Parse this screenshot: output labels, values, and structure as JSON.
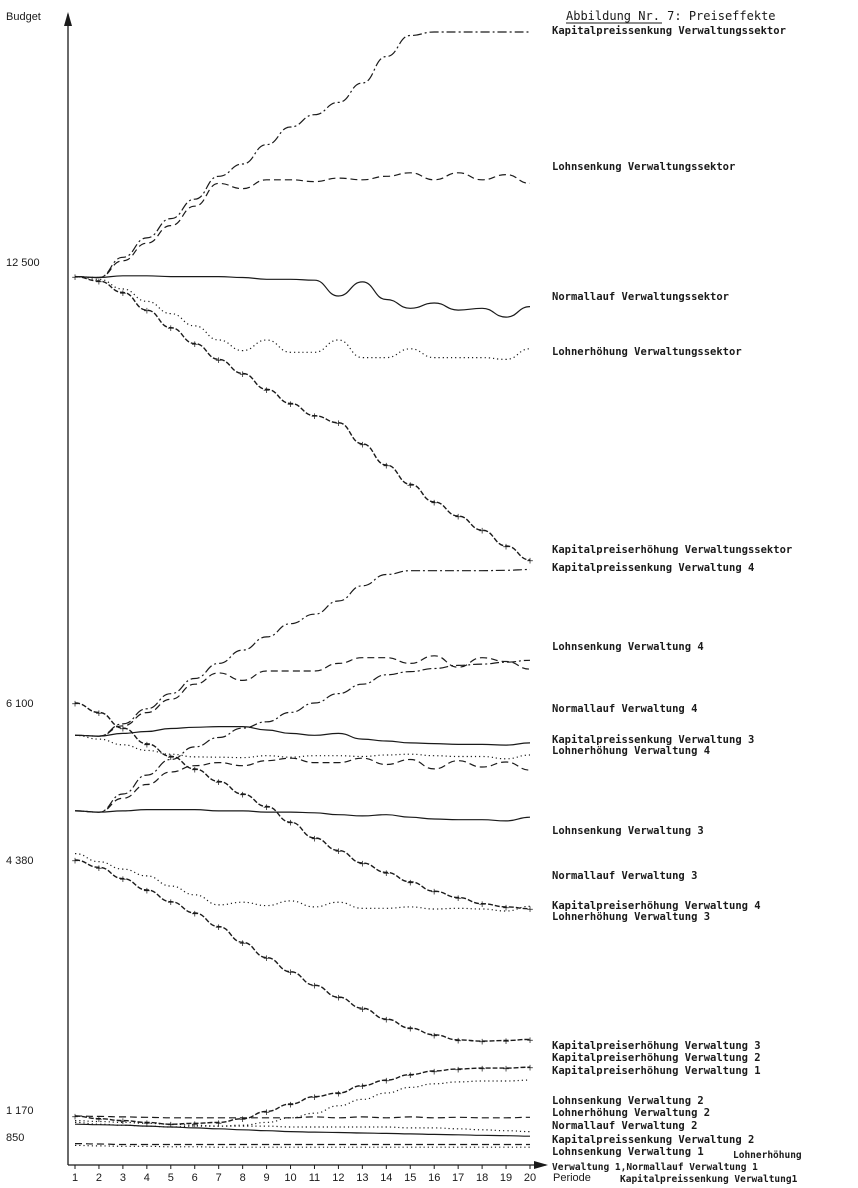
{
  "chart_data": {
    "type": "line",
    "title": "Abbildung Nr. 7: Preiseffekte",
    "ylabel": "Budget",
    "xlabel": "Periode",
    "x": [
      1,
      2,
      3,
      4,
      5,
      6,
      7,
      8,
      9,
      10,
      11,
      12,
      13,
      14,
      15,
      16,
      17,
      18,
      19,
      20
    ],
    "y_ticks": [
      "12 500",
      "6 100",
      "4 380",
      "1 170",
      "850"
    ],
    "series": [
      {
        "name": "Kapitalpreissenkung Verwaltungssektor",
        "style": "dashdot",
        "values": [
          12500,
          12450,
          13600,
          14700,
          15800,
          16900,
          18200,
          18900,
          20000,
          21000,
          21700,
          22400,
          23500,
          25000,
          26200,
          26400,
          26400,
          26400,
          26400,
          26400
        ]
      },
      {
        "name": "Lohnsenkung Verwaltungssektor",
        "style": "dashed",
        "values": [
          12500,
          12450,
          13400,
          14400,
          15400,
          16500,
          17800,
          17500,
          18000,
          18000,
          17900,
          18100,
          18000,
          18200,
          18400,
          18000,
          18400,
          18000,
          18300,
          17800
        ]
      },
      {
        "name": "Normallauf Verwaltungssektor",
        "style": "solid",
        "values": [
          12500,
          12450,
          12550,
          12550,
          12500,
          12500,
          12500,
          12450,
          12350,
          12350,
          12300,
          11400,
          12200,
          11200,
          10700,
          11000,
          10600,
          10700,
          10200,
          10800
        ]
      },
      {
        "name": "Lohnerhöhung Verwaltungssektor",
        "style": "dotted",
        "values": [
          12500,
          12350,
          11800,
          11100,
          10400,
          9700,
          8900,
          8300,
          8900,
          8200,
          8200,
          8900,
          7900,
          7900,
          8400,
          7900,
          7900,
          7900,
          7800,
          8400
        ]
      },
      {
        "name": "Kapitalpreiserhöhung Verwaltungssektor",
        "style": "marked",
        "values": [
          12500,
          12250,
          11600,
          10600,
          9600,
          8700,
          7800,
          7000,
          6100,
          5300,
          4600,
          4200,
          3000,
          1800,
          700,
          -300,
          -1100,
          -1900,
          -2800,
          -3600
        ]
      },
      {
        "name": "Kapitalpreissenkung Verwaltung 4",
        "style": "dashdot",
        "values": [
          6100,
          6080,
          6400,
          6800,
          7200,
          7600,
          8000,
          8350,
          8700,
          9050,
          9300,
          9650,
          10050,
          10350,
          10450,
          10450,
          10450,
          10450,
          10460,
          10480
        ]
      },
      {
        "name": "Lohnsenkung Verwaltung 4",
        "style": "dashed",
        "values": [
          6100,
          6080,
          6350,
          6700,
          7050,
          7450,
          7750,
          7550,
          7800,
          7800,
          7800,
          8000,
          8150,
          8150,
          8000,
          8200,
          7900,
          8150,
          8050,
          7850
        ]
      },
      {
        "name": "Normallauf Verwaltung 4",
        "style": "solid",
        "values": [
          6100,
          6080,
          6150,
          6200,
          6280,
          6310,
          6330,
          6330,
          6240,
          6150,
          6100,
          6150,
          6000,
          5950,
          5900,
          5880,
          5860,
          5860,
          5840,
          5900
        ]
      },
      {
        "name": "Kapitalpreissenkung Verwaltung 3",
        "style": "dashdot",
        "values": [
          4380,
          4360,
          4650,
          4950,
          5200,
          5400,
          5550,
          5700,
          5800,
          5950,
          6100,
          6250,
          6400,
          6550,
          6600,
          6650,
          6700,
          6720,
          6750,
          6780
        ]
      },
      {
        "name": "Lohnerhöhung Verwaltung 4",
        "style": "dotted",
        "values": [
          6100,
          6000,
          5850,
          5700,
          5600,
          5530,
          5520,
          5510,
          5560,
          5520,
          5560,
          5560,
          5540,
          5580,
          5600,
          5560,
          5540,
          5540,
          5480,
          5580
        ]
      },
      {
        "name": "Lohnsenkung Verwaltung 3",
        "style": "dashed",
        "values": [
          4380,
          4360,
          4580,
          4800,
          5000,
          5100,
          5150,
          5100,
          5180,
          5220,
          5150,
          5150,
          5220,
          5120,
          5200,
          5050,
          5180,
          5080,
          5160,
          5030
        ]
      },
      {
        "name": "Normallauf Verwaltung 3",
        "style": "solid",
        "values": [
          4380,
          4360,
          4380,
          4400,
          4400,
          4400,
          4380,
          4380,
          4360,
          4360,
          4350,
          4320,
          4300,
          4320,
          4280,
          4250,
          4240,
          4240,
          4220,
          4280
        ]
      },
      {
        "name": "Kapitalpreiserhöhung Verwaltung 4",
        "style": "marked",
        "values": [
          6100,
          5950,
          5700,
          5450,
          5250,
          5050,
          4850,
          4650,
          4450,
          4200,
          3950,
          3750,
          3550,
          3400,
          3250,
          3100,
          3000,
          2900,
          2850,
          2820
        ]
      },
      {
        "name": "Lohnerhöhung Verwaltung 3",
        "style": "dotted",
        "values": [
          4380,
          4260,
          4150,
          4050,
          3900,
          3770,
          3620,
          3660,
          3610,
          3680,
          3590,
          3660,
          3570,
          3570,
          3590,
          3560,
          3570,
          3560,
          3530,
          3600
        ]
      },
      {
        "name": "Kapitalpreiserhöhung Verwaltung 3",
        "style": "marked",
        "values": [
          4380,
          4250,
          4050,
          3850,
          3640,
          3440,
          3200,
          2920,
          2650,
          2400,
          2160,
          1950,
          1750,
          1560,
          1400,
          1280,
          1190,
          1170,
          1180,
          1200
        ]
      },
      {
        "name": "Kapitalpreiserhöhung Verwaltung 2",
        "style": "marked",
        "values": [
          1170,
          1140,
          1120,
          1100,
          1080,
          1090,
          1100,
          1140,
          1220,
          1300,
          1380,
          1420,
          1500,
          1560,
          1620,
          1660,
          1680,
          1690,
          1690,
          1700
        ]
      },
      {
        "name": "Kapitalpreiserhöhung Verwaltung 1",
        "style": "dotted",
        "values": [
          1100,
          1080,
          1070,
          1060,
          1050,
          1060,
          1060,
          1070,
          1100,
          1150,
          1200,
          1280,
          1350,
          1420,
          1480,
          1520,
          1540,
          1550,
          1550,
          1560
        ]
      },
      {
        "name": "Lohnsenkung Verwaltung 2",
        "style": "dashed",
        "values": [
          1170,
          1165,
          1160,
          1155,
          1150,
          1150,
          1150,
          1150,
          1150,
          1150,
          1160,
          1150,
          1160,
          1150,
          1160,
          1150,
          1155,
          1150,
          1150,
          1155
        ]
      },
      {
        "name": "Lohnerhöhung Verwaltung 2",
        "style": "dotted",
        "values": [
          1120,
          1110,
          1100,
          1090,
          1080,
          1070,
          1060,
          1060,
          1060,
          1050,
          1050,
          1050,
          1050,
          1050,
          1040,
          1040,
          1030,
          1020,
          1010,
          1000
        ]
      },
      {
        "name": "Normallauf Verwaltung 2",
        "style": "solid",
        "values": [
          1080,
          1075,
          1070,
          1060,
          1050,
          1040,
          1030,
          1020,
          1010,
          1000,
          995,
          990,
          985,
          980,
          975,
          970,
          965,
          960,
          955,
          950
        ]
      },
      {
        "name": "Kapitalpreissenkung Verwaltung 2",
        "style": "dashed",
        "values": [
          870,
          865,
          860,
          860,
          860,
          860,
          860,
          860,
          860,
          860,
          860,
          860,
          860,
          860,
          860,
          860,
          860,
          860,
          860,
          860
        ]
      },
      {
        "name": "Lohnsenkung Verwaltung 1",
        "style": "dotted",
        "values": [
          850,
          845,
          840,
          840,
          835,
          835,
          830,
          830,
          830,
          830,
          830,
          830,
          830,
          830,
          830,
          830,
          830,
          830,
          830,
          830
        ]
      }
    ],
    "extra_labels": [
      "Lohnerhöhung",
      "Verwaltung 1,Normallauf Verwaltung 1",
      "Kapitalpreissenkung Verwaltung1"
    ],
    "grid": false,
    "legend": "inline-right"
  }
}
